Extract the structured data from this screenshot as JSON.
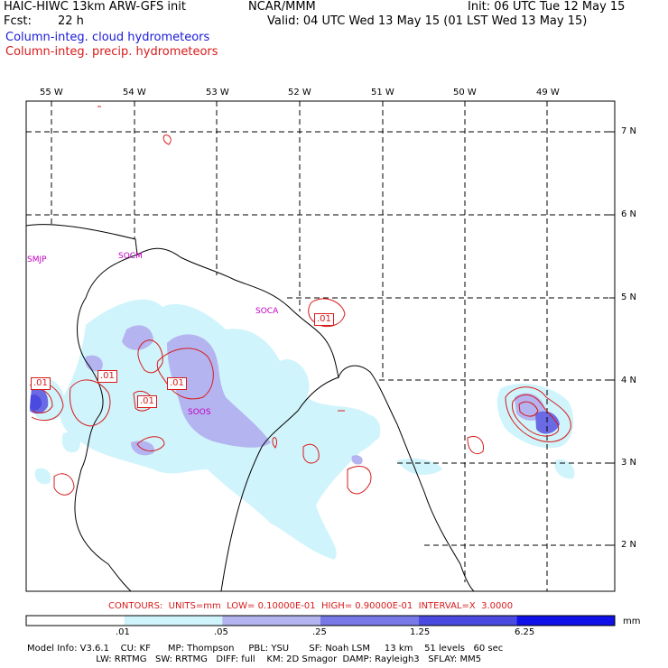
{
  "header": {
    "model": "HAIC-HIWC 13km ARW-GFS init",
    "org": "NCAR/MMM",
    "init": "Init: 06 UTC Tue 12 May 15",
    "fcst_label": "Fcst:",
    "fcst_value": "22 h",
    "valid": "Valid: 04 UTC Wed 13 May 15 (01 LST Wed 13 May 15)",
    "field1": "Column-integ. cloud hydrometeors",
    "field2": "Column-integ. precip. hydrometeors"
  },
  "lon_ticks": [
    "55 W",
    "54 W",
    "53 W",
    "52 W",
    "51 W",
    "50 W",
    "49 W"
  ],
  "lat_ticks": [
    "7 N",
    "6 N",
    "5 N",
    "4 N",
    "3 N",
    "2 N"
  ],
  "station_labels": [
    "SMJP",
    "SOCM",
    "SOCA",
    "SOOS"
  ],
  "contour_labels": [
    ".01",
    ".01",
    ".01",
    ".01",
    ".01"
  ],
  "contour_info": "CONTOURS:  UNITS=mm  LOW= 0.10000E-01  HIGH= 0.90000E-01  INTERVAL=X  3.0000",
  "colorbar": {
    "ticks": [
      ".01",
      ".05",
      ".25",
      "1.25",
      "6.25"
    ],
    "units": "mm",
    "colors": [
      "#ffffff",
      "#d0f4fb",
      "#b4b4f0",
      "#7878e6",
      "#4a4ae0",
      "#1010e8"
    ]
  },
  "model_info": {
    "line1": "Model Info: V3.6.1    CU: KF      MP: Thompson     PBL: YSU       SF: Noah LSM     13 km    51 levels   60 sec",
    "line2": "                        LW: RRTMG   SW: RRTMG   DIFF: full    KM: 2D Smagor  DAMP: Rayleigh3   SFLAY: MM5"
  },
  "colors": {
    "cloud_title": "#1a1ad8",
    "precip_contour": "#d81a1a",
    "station": "#c000c0"
  }
}
